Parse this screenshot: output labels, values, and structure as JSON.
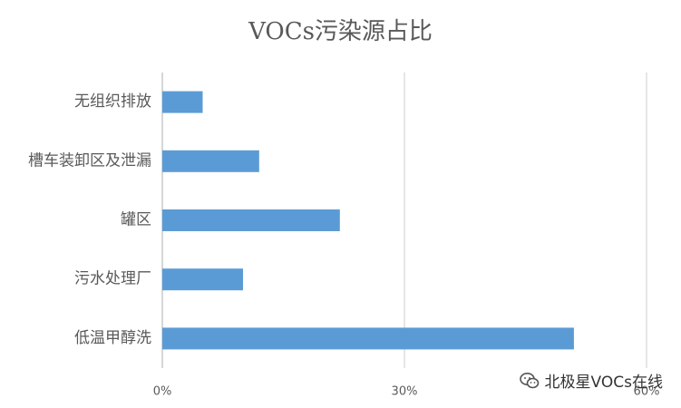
{
  "colors": {
    "bar": "#5B9BD5",
    "grid": "#D9D9D9",
    "axis": "#BFBFBF",
    "label": "#595959",
    "title": "#595959"
  },
  "chart_data": {
    "type": "bar",
    "orientation": "horizontal",
    "title": "VOCs污染源占比",
    "categories": [
      "无组织排放",
      "槽车装卸区及泄漏",
      "罐区",
      "污水处理厂",
      "低温甲醇洗"
    ],
    "values": [
      5,
      12,
      22,
      10,
      51
    ],
    "xlim": [
      0,
      60
    ],
    "ticks": [
      0,
      30,
      60
    ],
    "tick_labels": [
      "0%",
      "30%",
      "60%"
    ],
    "grid": true,
    "legend": null
  },
  "watermark": {
    "text": "北极星VOCs在线",
    "icon": "wechat-icon"
  }
}
